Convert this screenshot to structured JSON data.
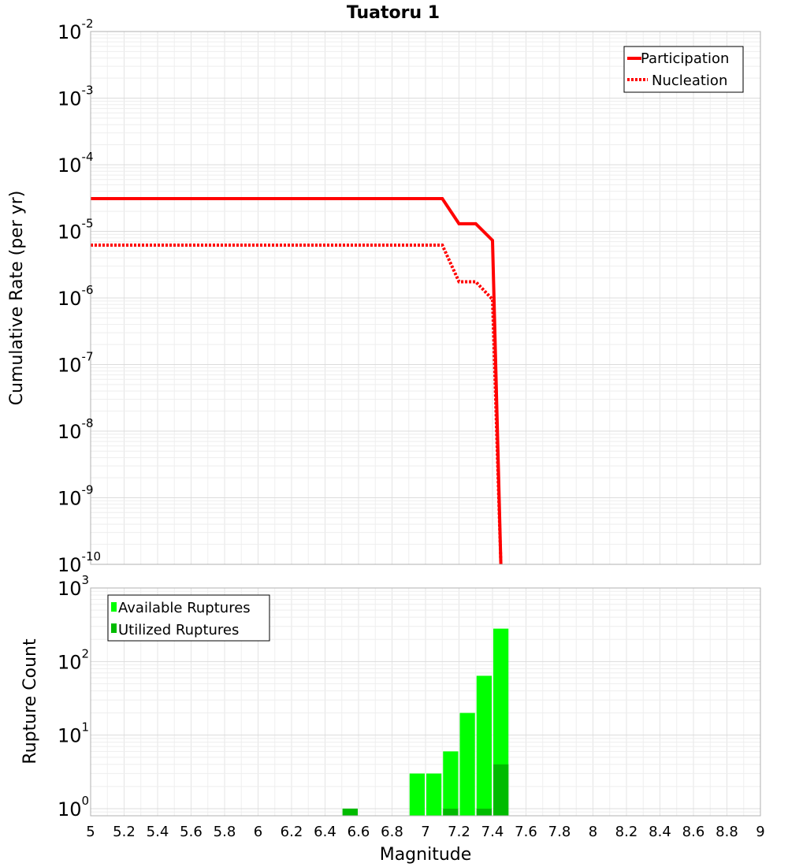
{
  "title": "Tuatoru 1",
  "chart_data": [
    {
      "type": "line",
      "title": "Tuatoru 1",
      "xlabel": "",
      "ylabel": "Cumulative Rate (per yr)",
      "xlim": [
        5,
        9
      ],
      "ylim": [
        1e-10,
        0.01
      ],
      "yscale": "log",
      "y_tick_labels": [
        "10^-10",
        "10^-9",
        "10^-8",
        "10^-7",
        "10^-6",
        "10^-5",
        "10^-4",
        "10^-3",
        "10^-2"
      ],
      "grid": true,
      "legend_placement": "top-right",
      "series": [
        {
          "name": "Participation",
          "color": "#ff0000",
          "style": "solid",
          "x": [
            5.0,
            7.1,
            7.2,
            7.3,
            7.4,
            7.45
          ],
          "y": [
            3.1e-05,
            3.1e-05,
            1.3e-05,
            1.3e-05,
            7.3e-06,
            1e-10
          ]
        },
        {
          "name": "Nucleation",
          "color": "#ff0000",
          "style": "dotted",
          "x": [
            5.0,
            7.1,
            7.2,
            7.3,
            7.4,
            7.45
          ],
          "y": [
            6.2e-06,
            6.2e-06,
            1.75e-06,
            1.75e-06,
            9.5e-07,
            1e-10
          ]
        }
      ]
    },
    {
      "type": "bar",
      "xlabel": "Magnitude",
      "ylabel": "Rupture Count",
      "xlim": [
        5,
        9
      ],
      "ylim": [
        0.8,
        1000
      ],
      "yscale": "log",
      "y_tick_labels": [
        "10^0",
        "10^1",
        "10^2",
        "10^3"
      ],
      "x_ticks": [
        "5",
        "5.2",
        "5.4",
        "5.6",
        "5.8",
        "6",
        "6.2",
        "6.4",
        "6.6",
        "6.8",
        "7",
        "7.2",
        "7.4",
        "7.6",
        "7.8",
        "8",
        "8.2",
        "8.4",
        "8.6",
        "8.8",
        "9"
      ],
      "grid": true,
      "legend_placement": "top-left",
      "bin_width": 0.1,
      "series": [
        {
          "name": "Available Ruptures",
          "color": "#00ff00",
          "x": [
            6.55,
            6.95,
            7.05,
            7.15,
            7.25,
            7.35,
            7.45
          ],
          "values": [
            1,
            3,
            3,
            6,
            20,
            64,
            280
          ]
        },
        {
          "name": "Utilized Ruptures",
          "color": "#00bb00",
          "x": [
            6.55,
            7.15,
            7.35,
            7.45
          ],
          "values": [
            1,
            1,
            1,
            4
          ]
        }
      ]
    }
  ]
}
